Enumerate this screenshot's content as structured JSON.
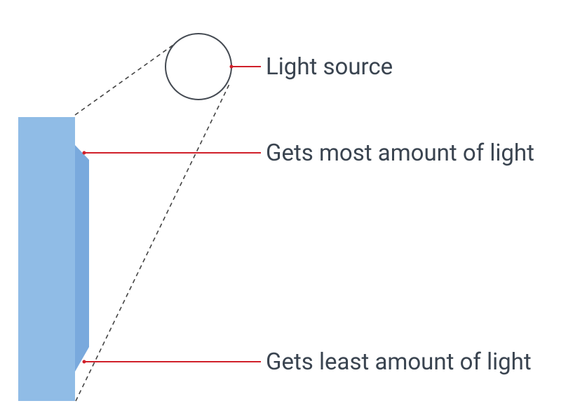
{
  "diagram": {
    "labels": {
      "light_source": "Light source",
      "most_light": "Gets most amount of light",
      "least_light": "Gets least amount of light"
    },
    "colors": {
      "panel_face": "#90bce6",
      "panel_side": "#79a9dd",
      "leader_line": "#d0202a",
      "text": "#3a4450",
      "dashed_line": "#444444",
      "circle_stroke": "#444a52"
    }
  }
}
